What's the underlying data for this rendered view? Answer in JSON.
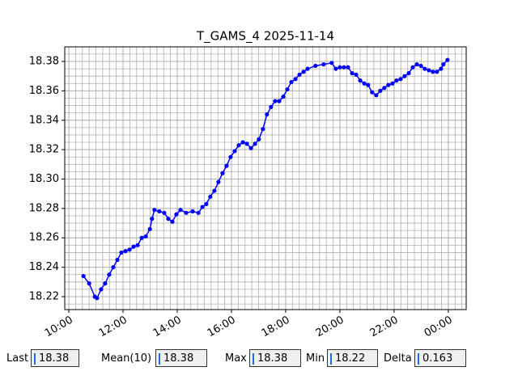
{
  "chart_data": {
    "type": "line",
    "title": "T_GAMS_4 2025-11-14",
    "series": [
      {
        "color": "#0000ff",
        "x": [
          10.54,
          10.75,
          10.96,
          11.04,
          11.19,
          11.34,
          11.49,
          11.64,
          11.79,
          11.94,
          12.09,
          12.24,
          12.39,
          12.54,
          12.69,
          12.84,
          12.99,
          13.07,
          13.16,
          13.34,
          13.52,
          13.67,
          13.82,
          13.97,
          14.12,
          14.33,
          14.57,
          14.78,
          14.93,
          15.07,
          15.22,
          15.37,
          15.52,
          15.67,
          15.82,
          15.97,
          16.12,
          16.27,
          16.42,
          16.57,
          16.72,
          16.87,
          17.01,
          17.16,
          17.31,
          17.46,
          17.61,
          17.76,
          17.91,
          18.06,
          18.21,
          18.36,
          18.51,
          18.66,
          18.81,
          19.1,
          19.4,
          19.7,
          19.85,
          20.0,
          20.15,
          20.3,
          20.45,
          20.6,
          20.75,
          20.9,
          21.04,
          21.19,
          21.34,
          21.49,
          21.64,
          21.79,
          21.94,
          22.09,
          22.24,
          22.39,
          22.54,
          22.69,
          22.84,
          22.99,
          23.13,
          23.28,
          23.43,
          23.58,
          23.73,
          23.82,
          23.97
        ],
        "values": [
          18.234,
          18.229,
          18.22,
          18.219,
          18.225,
          18.229,
          18.235,
          18.24,
          18.245,
          18.25,
          18.251,
          18.252,
          18.254,
          18.255,
          18.26,
          18.261,
          18.266,
          18.273,
          18.279,
          18.278,
          18.277,
          18.273,
          18.271,
          18.276,
          18.279,
          18.277,
          18.278,
          18.277,
          18.281,
          18.283,
          18.288,
          18.292,
          18.298,
          18.304,
          18.309,
          18.315,
          18.319,
          18.323,
          18.325,
          18.324,
          18.321,
          18.324,
          18.327,
          18.334,
          18.344,
          18.349,
          18.353,
          18.353,
          18.356,
          18.361,
          18.366,
          18.368,
          18.371,
          18.373,
          18.375,
          18.377,
          18.378,
          18.379,
          18.375,
          18.376,
          18.376,
          18.376,
          18.372,
          18.371,
          18.367,
          18.365,
          18.364,
          18.359,
          18.357,
          18.36,
          18.362,
          18.364,
          18.365,
          18.367,
          18.368,
          18.37,
          18.372,
          18.376,
          18.378,
          18.377,
          18.375,
          18.374,
          18.373,
          18.373,
          18.375,
          18.378,
          18.381
        ]
      }
    ],
    "xlim": [
      9.85,
      24.66
    ],
    "xticks": [
      {
        "value": 10,
        "label": "10:00"
      },
      {
        "value": 12,
        "label": "12:00"
      },
      {
        "value": 14,
        "label": "14:00"
      },
      {
        "value": 16,
        "label": "16:00"
      },
      {
        "value": 18,
        "label": "18:00"
      },
      {
        "value": 20,
        "label": "20:00"
      },
      {
        "value": 22,
        "label": "22:00"
      },
      {
        "value": 24,
        "label": "00:00"
      }
    ],
    "ylim": [
      18.2112,
      18.3899
    ],
    "yticks": [
      {
        "value": 18.22,
        "label": "18.22"
      },
      {
        "value": 18.24,
        "label": "18.24"
      },
      {
        "value": 18.26,
        "label": "18.26"
      },
      {
        "value": 18.28,
        "label": "18.28"
      },
      {
        "value": 18.3,
        "label": "18.30"
      },
      {
        "value": 18.32,
        "label": "18.32"
      },
      {
        "value": 18.34,
        "label": "18.34"
      },
      {
        "value": 18.36,
        "label": "18.36"
      },
      {
        "value": 18.38,
        "label": "18.38"
      }
    ],
    "grid": true,
    "x_minor_divisions": 8,
    "y_minor_divisions": 4
  },
  "controls": [
    {
      "label": "Last",
      "value": "18.38"
    },
    {
      "label": "Mean(10)",
      "value": "18.38"
    },
    {
      "label": "Max",
      "value": "18.38"
    },
    {
      "label": "Min",
      "value": "18.22"
    },
    {
      "label": "Delta",
      "value": "0.163"
    }
  ]
}
